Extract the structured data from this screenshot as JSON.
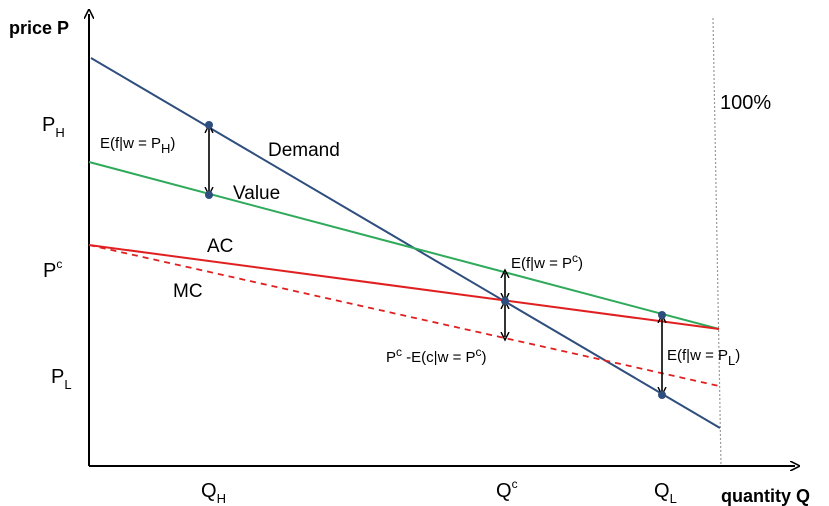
{
  "axes": {
    "y_label": "price P",
    "x_label": "quantity Q"
  },
  "y_ticks": [
    {
      "id": "ph",
      "base": "P",
      "sub": "H"
    },
    {
      "id": "pc",
      "base": "P",
      "sup": "c"
    },
    {
      "id": "pl",
      "base": "P",
      "sub": "L"
    }
  ],
  "x_ticks": [
    {
      "id": "qh",
      "base": "Q",
      "sub": "H"
    },
    {
      "id": "qc",
      "base": "Q",
      "sup": "c"
    },
    {
      "id": "ql",
      "base": "Q",
      "sub": "L"
    }
  ],
  "vertical_marker": {
    "label": "100%"
  },
  "curves": {
    "demand": {
      "label": "Demand",
      "color": "#2e4e7e"
    },
    "value": {
      "label": "Value",
      "color": "#2eaa5a"
    },
    "ac": {
      "label": "AC",
      "color": "#e02020"
    },
    "mc": {
      "label": "MC",
      "color": "#e02020"
    }
  },
  "annotations": {
    "e_f_ph": {
      "prefix": "E(f|w = P",
      "sub": "H",
      "suffix": ")"
    },
    "e_f_pc": {
      "prefix": "E(f|w = P",
      "sup": "c",
      "suffix": ")"
    },
    "pc_minus_ec": {
      "p": "P",
      "p_sup": "c",
      "mid": " -E(c|w = P",
      "mid_sup": "c",
      "suffix": ")"
    },
    "e_f_pl": {
      "prefix": "E(f|w = P",
      "sub": "L",
      "suffix": ")"
    }
  },
  "colors": {
    "axis": "#000000",
    "marker": "#999999",
    "point": "#2e4e7e"
  }
}
